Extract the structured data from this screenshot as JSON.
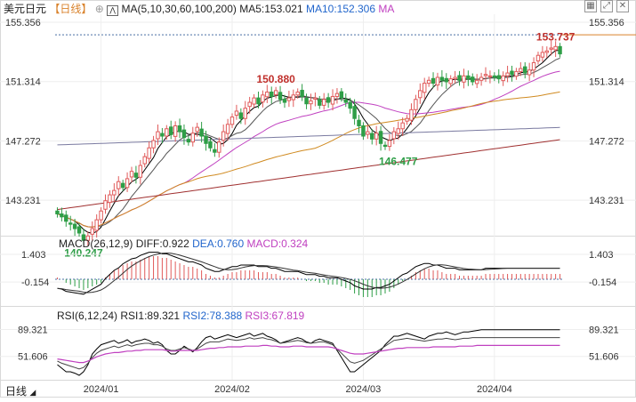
{
  "header": {
    "symbol": "美元日元",
    "period": "【日线】",
    "ma_label": "MA(5,10,30,60,100,200)",
    "ma5_label": "MA5:153.021",
    "ma10_label": "MA10:152.306",
    "ma_extra": "MA"
  },
  "toolbar": {
    "icons": [
      "grid-icon",
      "expand-icon",
      "close-icon"
    ]
  },
  "main_chart": {
    "y_ticks": [
      "155.356",
      "151.314",
      "147.272",
      "143.231"
    ],
    "y_tick_values": [
      155.356,
      151.314,
      147.272,
      143.231
    ],
    "y_range": [
      141.0,
      155.9
    ],
    "reference_line": 154.5,
    "annotations": {
      "high1": {
        "text": "150.880",
        "value": 150.88,
        "index": 50
      },
      "high2": {
        "text": "153.737",
        "value": 153.737,
        "index": 114
      },
      "low1": {
        "text": "140.247",
        "value": 140.247,
        "index": 6
      },
      "low2": {
        "text": "146.477",
        "value": 146.477,
        "index": 78
      }
    }
  },
  "macd": {
    "label": "MACD(26,12,9)",
    "diff_label": "DIFF:0.922",
    "dea_label": "DEA:0.760",
    "macd_label": "MACD:0.324",
    "y_ticks": [
      "1.403",
      "-0.154"
    ],
    "y_tick_values": [
      1.403,
      -0.154
    ],
    "y_range": [
      -1.4,
      1.7
    ]
  },
  "rsi": {
    "label": "RSI(6,12,24)",
    "rsi1_label": "RSI1:89.321",
    "rsi2_label": "RSI2:78.388",
    "rsi3_label": "RSI3:67.819",
    "y_ticks": [
      "89.321",
      "51.606"
    ],
    "y_tick_values": [
      89.321,
      51.606
    ],
    "y_range": [
      20,
      100
    ]
  },
  "x_axis": {
    "bottom_label": "日线",
    "months": [
      {
        "label": "2024/01",
        "index": 10
      },
      {
        "label": "2024/02",
        "index": 40
      },
      {
        "label": "2024/03",
        "index": 70
      },
      {
        "label": "2024/04",
        "index": 100
      }
    ]
  },
  "colors": {
    "up": "#e05a5a",
    "down": "#2e9e47",
    "ma5": "#000000",
    "ma10": "#555555",
    "ma30": "#c040c0",
    "ma60": "#d08a20",
    "ma100": "#7a7aa0",
    "ma200": "#a03030",
    "label_red": "#c0302c",
    "label_green": "#2e9e47"
  },
  "chart_data": {
    "type": "candlestick",
    "closes": [
      142.3,
      142.1,
      141.8,
      141.6,
      141.3,
      141.0,
      140.5,
      140.8,
      141.3,
      141.9,
      142.5,
      143.2,
      143.6,
      143.9,
      144.5,
      144.1,
      144.7,
      145.2,
      144.8,
      145.6,
      146.2,
      146.8,
      147.3,
      147.9,
      147.6,
      148.1,
      147.7,
      148.3,
      147.9,
      147.5,
      147.2,
      147.8,
      148.2,
      147.6,
      147.1,
      146.8,
      146.5,
      147.2,
      147.9,
      148.4,
      148.9,
      149.3,
      148.8,
      149.5,
      149.9,
      150.2,
      149.8,
      150.4,
      150.6,
      150.3,
      150.7,
      150.1,
      149.9,
      150.2,
      150.4,
      150.6,
      150.3,
      149.8,
      150.0,
      150.2,
      149.7,
      150.1,
      149.9,
      150.3,
      150.5,
      150.2,
      149.9,
      149.5,
      148.8,
      148.3,
      147.6,
      147.9,
      147.4,
      147.8,
      147.1,
      146.9,
      147.3,
      147.9,
      148.1,
      148.5,
      148.8,
      149.4,
      150.1,
      150.7,
      151.2,
      151.4,
      151.2,
      151.6,
      151.4,
      151.3,
      151.5,
      151.6,
      151.4,
      151.7,
      151.5,
      151.3,
      151.4,
      151.6,
      151.8,
      151.7,
      151.6,
      151.5,
      151.7,
      151.9,
      151.8,
      152.0,
      152.2,
      151.9,
      152.1,
      152.6,
      153.1,
      153.3,
      153.4,
      153.6,
      153.7,
      153.2
    ],
    "macd_hist": [
      0.1,
      0.0,
      -0.2,
      -0.3,
      -0.4,
      -0.5,
      -0.6,
      -0.5,
      -0.4,
      -0.3,
      -0.2,
      0.1,
      0.3,
      0.5,
      0.6,
      0.8,
      0.9,
      1.0,
      1.0,
      1.1,
      1.2,
      1.3,
      1.3,
      1.3,
      1.2,
      1.2,
      1.1,
      1.0,
      0.9,
      0.8,
      0.7,
      0.7,
      0.6,
      0.5,
      0.3,
      0.2,
      0.1,
      0.1,
      0.2,
      0.3,
      0.4,
      0.4,
      0.5,
      0.5,
      0.5,
      0.5,
      0.4,
      0.4,
      0.4,
      0.3,
      0.3,
      0.2,
      0.1,
      0.1,
      0.1,
      0.1,
      0.0,
      -0.1,
      -0.1,
      -0.1,
      -0.2,
      -0.2,
      -0.3,
      -0.3,
      -0.3,
      -0.4,
      -0.5,
      -0.6,
      -0.8,
      -0.9,
      -1.0,
      -1.0,
      -1.0,
      -0.9,
      -0.9,
      -0.8,
      -0.7,
      -0.5,
      -0.3,
      -0.1,
      0.0,
      0.2,
      0.4,
      0.5,
      0.6,
      0.6,
      0.5,
      0.5,
      0.4,
      0.3,
      0.3,
      0.3,
      0.2,
      0.2,
      0.2,
      0.2,
      0.2,
      0.2,
      0.3,
      0.3,
      0.3,
      0.3,
      0.3,
      0.3,
      0.3,
      0.3,
      0.3,
      0.3,
      0.3,
      0.3,
      0.3,
      0.3,
      0.3,
      0.3,
      0.3,
      0.3
    ],
    "rsi1": [
      40,
      35,
      30,
      30,
      28,
      25,
      30,
      40,
      55,
      62,
      68,
      70,
      72,
      74,
      70,
      72,
      75,
      70,
      73,
      74,
      76,
      74,
      70,
      72,
      68,
      60,
      55,
      55,
      60,
      66,
      62,
      58,
      64,
      72,
      78,
      80,
      76,
      78,
      80,
      82,
      80,
      78,
      80,
      82,
      84,
      80,
      82,
      84,
      80,
      78,
      75,
      70,
      72,
      74,
      76,
      78,
      76,
      72,
      70,
      74,
      76,
      74,
      72,
      70,
      60,
      50,
      40,
      30,
      30,
      35,
      40,
      45,
      50,
      55,
      60,
      68,
      74,
      80,
      80,
      82,
      84,
      82,
      80,
      78,
      76,
      80,
      82,
      84,
      84,
      86,
      84,
      82,
      84,
      86,
      86,
      87,
      88,
      89,
      89,
      89,
      89,
      89,
      89,
      89,
      89,
      89,
      89,
      89,
      89,
      89,
      89,
      89,
      89,
      89,
      89,
      89
    ],
    "rsi2": [
      45,
      42,
      40,
      38,
      36,
      34,
      36,
      42,
      50,
      56,
      60,
      62,
      64,
      66,
      64,
      66,
      68,
      66,
      68,
      69,
      70,
      70,
      68,
      68,
      66,
      62,
      60,
      60,
      62,
      64,
      62,
      60,
      62,
      66,
      70,
      72,
      72,
      72,
      74,
      76,
      75,
      74,
      75,
      76,
      78,
      76,
      77,
      78,
      76,
      75,
      73,
      70,
      71,
      72,
      73,
      74,
      73,
      71,
      70,
      71,
      72,
      72,
      70,
      68,
      62,
      56,
      50,
      44,
      42,
      44,
      46,
      50,
      54,
      58,
      62,
      66,
      70,
      74,
      75,
      76,
      77,
      76,
      75,
      74,
      73,
      74,
      75,
      76,
      76,
      77,
      76,
      75,
      76,
      77,
      77,
      78,
      78,
      78,
      78,
      78,
      78,
      78,
      78,
      78,
      78,
      78,
      78,
      78,
      78,
      78,
      78,
      78,
      78,
      78,
      78,
      78
    ],
    "rsi3": [
      48,
      47,
      46,
      45,
      44,
      43,
      43,
      45,
      48,
      51,
      53,
      55,
      56,
      57,
      57,
      58,
      59,
      59,
      60,
      60,
      61,
      61,
      61,
      61,
      61,
      60,
      59,
      59,
      60,
      60,
      60,
      60,
      60,
      61,
      62,
      63,
      63,
      64,
      64,
      65,
      65,
      65,
      65,
      66,
      66,
      66,
      66,
      67,
      67,
      66,
      66,
      65,
      65,
      65,
      66,
      66,
      66,
      65,
      65,
      65,
      65,
      65,
      65,
      64,
      62,
      60,
      58,
      56,
      55,
      55,
      55,
      56,
      57,
      58,
      59,
      60,
      61,
      62,
      63,
      63,
      64,
      64,
      64,
      64,
      64,
      64,
      65,
      65,
      65,
      65,
      65,
      65,
      66,
      66,
      66,
      66,
      67,
      67,
      67,
      67,
      67,
      67,
      67,
      67,
      67,
      67,
      67,
      67,
      67,
      67,
      67,
      67,
      67,
      67,
      67,
      67
    ]
  }
}
